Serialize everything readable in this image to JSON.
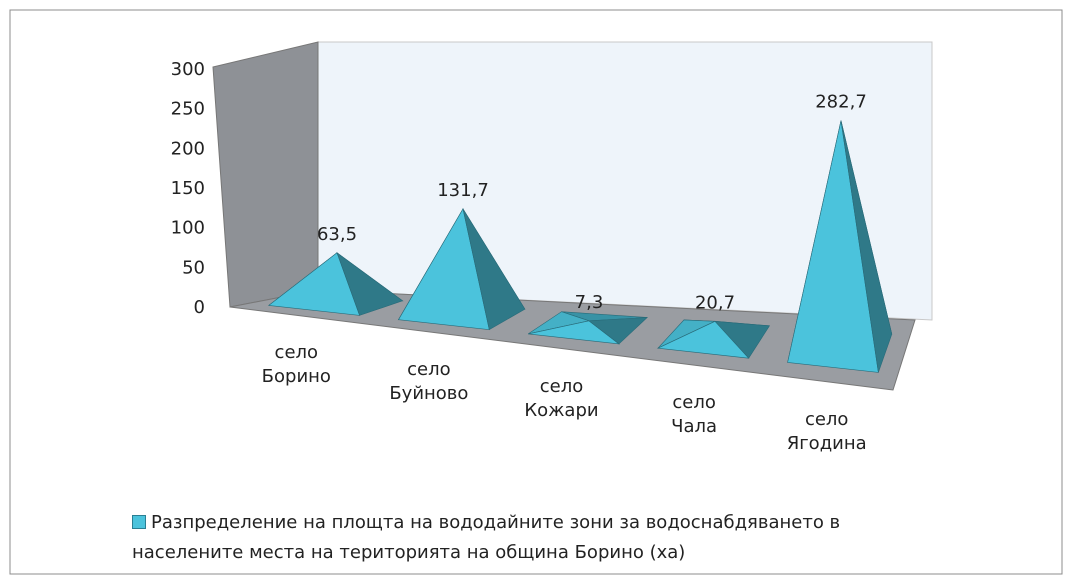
{
  "chart_data": {
    "type": "pyramid3d",
    "categories": [
      "село Борино",
      "село Буйново",
      "село Кожари",
      "село Чала",
      "село Ягодина"
    ],
    "series": [
      {
        "name": "Разпределение на площта на вододайните зони за водоснабдяването в населените места на територията на община Борино (ха)",
        "color": "#4bc3dc",
        "values": [
          63.5,
          131.7,
          7.3,
          20.7,
          282.7
        ],
        "value_labels": [
          "63,5",
          "131,7",
          "7,3",
          "20,7",
          "282,7"
        ]
      }
    ],
    "ylim": [
      0,
      300
    ],
    "yticks": [
      0,
      50,
      100,
      150,
      200,
      250,
      300
    ],
    "grid": false,
    "legend": "bottom"
  }
}
